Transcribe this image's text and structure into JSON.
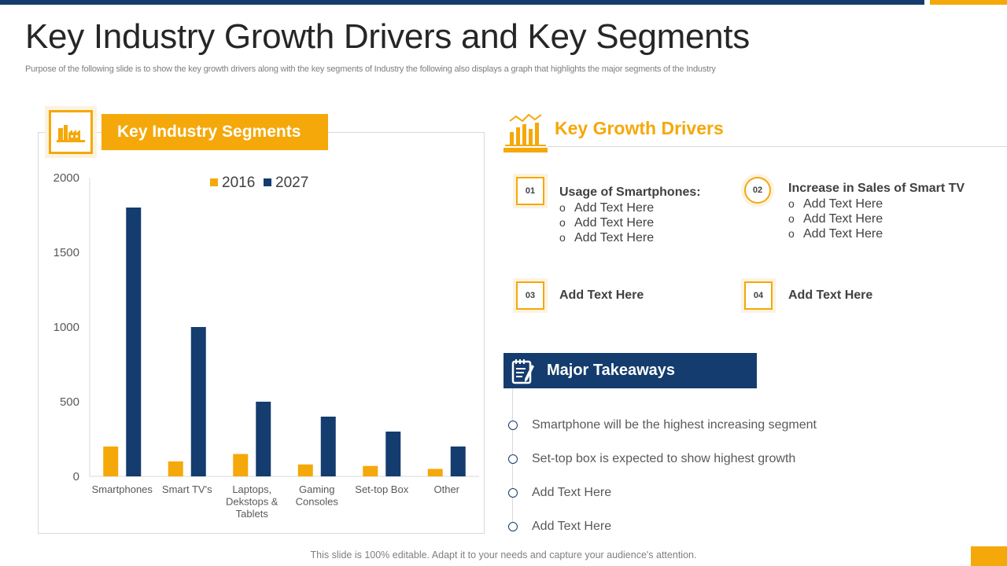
{
  "slide": {
    "title": "Key Industry Growth Drivers and Key Segments",
    "subtitle": "Purpose of the following slide is to show the key growth drivers along with the key segments of Industry the following also displays a graph that highlights the major segments of the Industry",
    "footer": "This slide is 100% editable. Adapt it to your needs and capture your audience's attention."
  },
  "segments": {
    "header": "Key Industry Segments",
    "icon": "factory-icon"
  },
  "chart_data": {
    "type": "bar",
    "categories": [
      "Smartphones",
      "Smart TV's",
      "Laptops, Dekstops & Tablets",
      "Gaming Consoles",
      "Set-top Box",
      "Other"
    ],
    "category_lines": [
      [
        "Smartphones"
      ],
      [
        "Smart TV's"
      ],
      [
        "Laptops,",
        "Dekstops &",
        "Tablets"
      ],
      [
        "Gaming",
        "Consoles"
      ],
      [
        "Set-top Box"
      ],
      [
        "Other"
      ]
    ],
    "series": [
      {
        "name": "2016",
        "values": [
          200,
          100,
          150,
          80,
          70,
          50
        ],
        "color": "#f5a80a"
      },
      {
        "name": "2027",
        "values": [
          1800,
          1000,
          500,
          400,
          300,
          200
        ],
        "color": "#143c6e"
      }
    ],
    "yticks": [
      0,
      500,
      1000,
      1500,
      2000
    ],
    "ylim": [
      0,
      2000
    ],
    "legend_position": "top",
    "grid": false
  },
  "growth": {
    "title": "Key Growth Drivers",
    "icon": "bar-chart-growth-icon",
    "drivers": [
      {
        "number": "01",
        "heading": "Usage of Smartphones:",
        "items": [
          "Add Text Here",
          "Add Text Here",
          "Add Text Here"
        ]
      },
      {
        "number": "02",
        "heading": "Increase in Sales of Smart TV",
        "items": [
          "Add Text Here",
          "Add Text Here",
          "Add Text Here"
        ]
      },
      {
        "number": "03",
        "heading": "Add Text Here",
        "items": []
      },
      {
        "number": "04",
        "heading": "Add Text Here",
        "items": []
      }
    ]
  },
  "takeaways": {
    "header": "Major Takeaways",
    "icon": "notepad-pen-icon",
    "items": [
      "Smartphone will be the highest increasing segment",
      "Set-top box is expected to show highest growth",
      "Add Text Here",
      "Add Text Here"
    ]
  },
  "colors": {
    "gold": "#f5a80a",
    "navy": "#143c6e"
  }
}
